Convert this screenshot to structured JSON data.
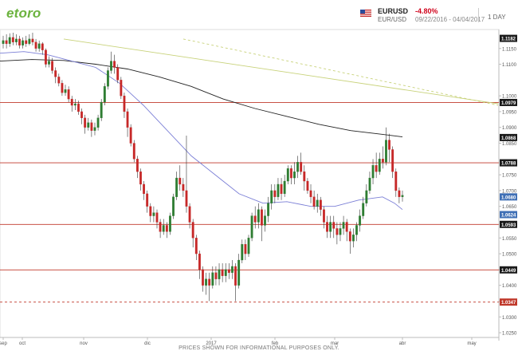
{
  "header": {
    "logo": "etoro",
    "symbol": "EURUSD",
    "symbol_sub": "EUR/USD",
    "change": "-4.80%",
    "date_range": "09/22/2016 - 04/04/2017",
    "timeframe": "1 DAY"
  },
  "footer": "PRICES SHOWN FOR INFORMATIONAL PURPOSES ONLY.",
  "colors": {
    "candle_up": "#2e7d32",
    "candle_down": "#c62828",
    "level_line": "#c0392b",
    "ma_long": "#222222",
    "ma_short": "#7b7fd6",
    "trend_line": "#c8d27a",
    "label_dark": "#1a1a1a",
    "label_blue": "#3f6fb5",
    "label_red": "#c0392b"
  },
  "chart_data": {
    "type": "candlestick",
    "x_ticks": [
      "sep",
      "oct",
      "nov",
      "dic",
      "2017",
      "feb",
      "mar",
      "abr",
      "may"
    ],
    "y_ticks": [
      "1.1150",
      "1.1100",
      "1.1000",
      "1.0950",
      "1.0900",
      "1.0850",
      "1.0750",
      "1.0700",
      "1.0650",
      "1.0550",
      "1.0500",
      "1.0450",
      "1.0400",
      "1.0350",
      "1.0300",
      "1.0250"
    ],
    "ylim": [
      1.0235,
      1.121
    ],
    "price_tags": [
      {
        "value": "1.1182",
        "style": "dark"
      },
      {
        "value": "1.0979",
        "style": "dark"
      },
      {
        "value": "1.0868",
        "style": "dark"
      },
      {
        "value": "1.0788",
        "style": "dark"
      },
      {
        "value": "1.0680",
        "style": "blue"
      },
      {
        "value": "1.0624",
        "style": "blue"
      },
      {
        "value": "1.0593",
        "style": "dark"
      },
      {
        "value": "1.0449",
        "style": "dark"
      },
      {
        "value": "1.0347",
        "style": "red"
      }
    ],
    "horizontal_levels": [
      {
        "value": 1.0979,
        "style": "solid"
      },
      {
        "value": 1.0788,
        "style": "solid"
      },
      {
        "value": 1.0593,
        "style": "solid"
      },
      {
        "value": 1.0449,
        "style": "solid"
      },
      {
        "value": 1.0347,
        "style": "dashed"
      }
    ],
    "ma_long": [
      [
        0,
        1.111
      ],
      [
        40,
        1.1115
      ],
      [
        80,
        1.1112
      ],
      [
        120,
        1.11
      ],
      [
        160,
        1.1085
      ],
      [
        200,
        1.106
      ],
      [
        240,
        1.103
      ],
      [
        280,
        1.099
      ],
      [
        320,
        1.096
      ],
      [
        360,
        1.0935
      ],
      [
        400,
        1.091
      ],
      [
        440,
        1.089
      ],
      [
        480,
        1.0878
      ],
      [
        505,
        1.087
      ]
    ],
    "ma_short": [
      [
        0,
        1.1135
      ],
      [
        30,
        1.114
      ],
      [
        60,
        1.113
      ],
      [
        90,
        1.111
      ],
      [
        120,
        1.109
      ],
      [
        150,
        1.104
      ],
      [
        180,
        1.097
      ],
      [
        210,
        1.089
      ],
      [
        240,
        1.081
      ],
      [
        270,
        1.075
      ],
      [
        300,
        1.069
      ],
      [
        330,
        1.066
      ],
      [
        360,
        1.0665
      ],
      [
        390,
        1.065
      ],
      [
        420,
        1.065
      ],
      [
        450,
        1.067
      ],
      [
        480,
        1.068
      ],
      [
        495,
        1.066
      ],
      [
        505,
        1.064
      ]
    ],
    "trend_solid": [
      [
        80,
        1.118
      ],
      [
        625,
        1.0975
      ]
    ],
    "trend_dashed": [
      [
        230,
        1.118
      ],
      [
        625,
        1.097
      ]
    ],
    "candles": [
      [
        1.1165,
        1.1175,
        1.119,
        1.115
      ],
      [
        1.1175,
        1.1165,
        1.1195,
        1.115
      ],
      [
        1.1165,
        1.1185,
        1.1198,
        1.1155
      ],
      [
        1.1185,
        1.117,
        1.12,
        1.116
      ],
      [
        1.117,
        1.118,
        1.1195,
        1.116
      ],
      [
        1.118,
        1.116,
        1.119,
        1.115
      ],
      [
        1.116,
        1.1175,
        1.1185,
        1.115
      ],
      [
        1.1175,
        1.1165,
        1.119,
        1.1155
      ],
      [
        1.1165,
        1.118,
        1.1195,
        1.116
      ],
      [
        1.118,
        1.117,
        1.12,
        1.116
      ],
      [
        1.117,
        1.115,
        1.118,
        1.114
      ],
      [
        1.115,
        1.1165,
        1.1175,
        1.114
      ],
      [
        1.1165,
        1.1145,
        1.117,
        1.113
      ],
      [
        1.1145,
        1.11,
        1.115,
        1.109
      ],
      [
        1.11,
        1.111,
        1.1125,
        1.109
      ],
      [
        1.111,
        1.108,
        1.112,
        1.107
      ],
      [
        1.108,
        1.106,
        1.109,
        1.104
      ],
      [
        1.106,
        1.104,
        1.107,
        1.103
      ],
      [
        1.104,
        1.101,
        1.105,
        1.1
      ],
      [
        1.101,
        1.102,
        1.1035,
        1.1
      ],
      [
        1.102,
        1.099,
        1.103,
        1.098
      ],
      [
        1.099,
        1.097,
        1.1,
        1.095
      ],
      [
        1.097,
        1.0975,
        1.099,
        1.0955
      ],
      [
        1.0975,
        1.095,
        1.0985,
        1.094
      ],
      [
        1.095,
        1.093,
        1.096,
        1.091
      ],
      [
        1.093,
        1.09,
        1.094,
        1.088
      ],
      [
        1.09,
        1.0915,
        1.093,
        1.089
      ],
      [
        1.0915,
        1.089,
        1.0925,
        1.087
      ],
      [
        1.089,
        1.09,
        1.0915,
        1.0875
      ],
      [
        1.09,
        1.093,
        1.094,
        1.089
      ],
      [
        1.093,
        1.098,
        1.099,
        1.092
      ],
      [
        1.098,
        1.103,
        1.104,
        1.097
      ],
      [
        1.103,
        1.108,
        1.109,
        1.102
      ],
      [
        1.108,
        1.111,
        1.114,
        1.107
      ],
      [
        1.111,
        1.109,
        1.113,
        1.107
      ],
      [
        1.109,
        1.105,
        1.11,
        1.104
      ],
      [
        1.105,
        1.1,
        1.106,
        1.099
      ],
      [
        1.1,
        1.095,
        1.101,
        1.093
      ],
      [
        1.095,
        1.09,
        1.096,
        1.087
      ],
      [
        1.09,
        1.085,
        1.091,
        1.084
      ],
      [
        1.085,
        1.08,
        1.086,
        1.079
      ],
      [
        1.08,
        1.076,
        1.081,
        1.074
      ],
      [
        1.076,
        1.072,
        1.077,
        1.07
      ],
      [
        1.072,
        1.069,
        1.073,
        1.067
      ],
      [
        1.069,
        1.065,
        1.07,
        1.063
      ],
      [
        1.065,
        1.062,
        1.066,
        1.06
      ],
      [
        1.062,
        1.063,
        1.065,
        1.06
      ],
      [
        1.063,
        1.06,
        1.064,
        1.058
      ],
      [
        1.06,
        1.057,
        1.061,
        1.055
      ],
      [
        1.057,
        1.059,
        1.061,
        1.056
      ],
      [
        1.059,
        1.057,
        1.06,
        1.055
      ],
      [
        1.057,
        1.062,
        1.063,
        1.056
      ],
      [
        1.062,
        1.068,
        1.069,
        1.061
      ],
      [
        1.068,
        1.074,
        1.076,
        1.067
      ],
      [
        1.074,
        1.072,
        1.078,
        1.07
      ],
      [
        1.072,
        1.07,
        1.074,
        1.068
      ],
      [
        1.07,
        1.065,
        1.0874,
        1.063
      ],
      [
        1.065,
        1.06,
        1.066,
        1.058
      ],
      [
        1.06,
        1.055,
        1.061,
        1.052
      ],
      [
        1.055,
        1.05,
        1.056,
        1.048
      ],
      [
        1.05,
        1.045,
        1.051,
        1.042
      ],
      [
        1.045,
        1.04,
        1.046,
        1.038
      ],
      [
        1.04,
        1.042,
        1.044,
        1.037
      ],
      [
        1.042,
        1.04,
        1.044,
        1.035
      ],
      [
        1.04,
        1.044,
        1.046,
        1.039
      ],
      [
        1.044,
        1.042,
        1.046,
        1.04
      ],
      [
        1.042,
        1.045,
        1.047,
        1.04
      ],
      [
        1.045,
        1.043,
        1.047,
        1.041
      ],
      [
        1.043,
        1.045,
        1.047,
        1.041
      ],
      [
        1.045,
        1.044,
        1.047,
        1.042
      ],
      [
        1.044,
        1.046,
        1.048,
        1.042
      ],
      [
        1.046,
        1.04,
        1.047,
        1.035
      ],
      [
        1.04,
        1.048,
        1.05,
        1.039
      ],
      [
        1.048,
        1.053,
        1.0545,
        1.047
      ],
      [
        1.053,
        1.05,
        1.0545,
        1.048
      ],
      [
        1.05,
        1.055,
        1.056,
        1.049
      ],
      [
        1.055,
        1.062,
        1.063,
        1.054
      ],
      [
        1.062,
        1.06,
        1.065,
        1.058
      ],
      [
        1.06,
        1.064,
        1.066,
        1.058
      ],
      [
        1.064,
        1.059,
        1.065,
        1.054
      ],
      [
        1.059,
        1.062,
        1.064,
        1.057
      ],
      [
        1.062,
        1.066,
        1.068,
        1.06
      ],
      [
        1.066,
        1.07,
        1.072,
        1.064
      ],
      [
        1.07,
        1.068,
        1.072,
        1.066
      ],
      [
        1.068,
        1.072,
        1.074,
        1.067
      ],
      [
        1.072,
        1.069,
        1.074,
        1.067
      ],
      [
        1.069,
        1.073,
        1.075,
        1.068
      ],
      [
        1.073,
        1.077,
        1.078,
        1.072
      ],
      [
        1.077,
        1.074,
        1.078,
        1.072
      ],
      [
        1.074,
        1.076,
        1.079,
        1.072
      ],
      [
        1.076,
        1.079,
        1.081,
        1.074
      ],
      [
        1.079,
        1.076,
        1.082,
        1.075
      ],
      [
        1.076,
        1.073,
        1.078,
        1.07
      ],
      [
        1.073,
        1.07,
        1.074,
        1.069
      ],
      [
        1.07,
        1.068,
        1.072,
        1.066
      ],
      [
        1.068,
        1.065,
        1.07,
        1.064
      ],
      [
        1.065,
        1.067,
        1.069,
        1.063
      ],
      [
        1.067,
        1.064,
        1.068,
        1.062
      ],
      [
        1.064,
        1.06,
        1.065,
        1.058
      ],
      [
        1.06,
        1.057,
        1.062,
        1.055
      ],
      [
        1.057,
        1.06,
        1.062,
        1.055
      ],
      [
        1.06,
        1.058,
        1.062,
        1.055
      ],
      [
        1.058,
        1.056,
        1.06,
        1.053
      ],
      [
        1.056,
        1.058,
        1.06,
        1.054
      ],
      [
        1.058,
        1.06,
        1.062,
        1.056
      ],
      [
        1.06,
        1.057,
        1.061,
        1.054
      ],
      [
        1.057,
        1.054,
        1.058,
        1.05
      ],
      [
        1.054,
        1.056,
        1.058,
        1.052
      ],
      [
        1.056,
        1.059,
        1.06,
        1.054
      ],
      [
        1.059,
        1.062,
        1.064,
        1.057
      ],
      [
        1.062,
        1.066,
        1.068,
        1.061
      ],
      [
        1.066,
        1.07,
        1.072,
        1.065
      ],
      [
        1.07,
        1.074,
        1.076,
        1.069
      ],
      [
        1.074,
        1.078,
        1.08,
        1.072
      ],
      [
        1.078,
        1.076,
        1.082,
        1.074
      ],
      [
        1.076,
        1.08,
        1.082,
        1.075
      ],
      [
        1.08,
        1.079,
        1.084,
        1.077
      ],
      [
        1.079,
        1.086,
        1.09,
        1.078
      ],
      [
        1.086,
        1.083,
        1.088,
        1.079
      ],
      [
        1.083,
        1.076,
        1.084,
        1.074
      ],
      [
        1.076,
        1.07,
        1.077,
        1.068
      ],
      [
        1.07,
        1.068,
        1.071,
        1.066
      ],
      [
        1.068,
        1.0685,
        1.07,
        1.0665
      ]
    ]
  }
}
